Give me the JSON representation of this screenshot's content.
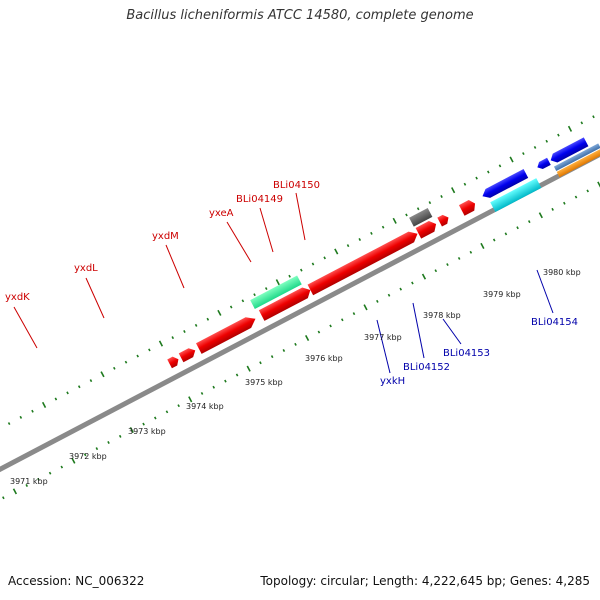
{
  "title": "Bacillus licheniformis ATCC 14580, complete genome",
  "footer": {
    "accession": "Accession: NC_006322",
    "summary": "Topology: circular; Length: 4,222,645 bp; Genes: 4,285"
  },
  "colors": {
    "backbone": "#8a8a8a",
    "tick": "#1e7a1e",
    "label_forward": "#cc0000",
    "label_reverse": "#0000aa"
  },
  "kbp_labels": [
    "3971 kbp",
    "3972 kbp",
    "3973 kbp",
    "3974 kbp",
    "3975 kbp",
    "3976 kbp",
    "3977 kbp",
    "3978 kbp",
    "3979 kbp",
    "3980 kbp"
  ],
  "gene_labels": [
    {
      "text": "yxdK",
      "color": "#cc0000"
    },
    {
      "text": "yxdL",
      "color": "#cc0000"
    },
    {
      "text": "yxdM",
      "color": "#cc0000"
    },
    {
      "text": "yxeA",
      "color": "#cc0000"
    },
    {
      "text": "BLi04149",
      "color": "#cc0000"
    },
    {
      "text": "BLi04150",
      "color": "#cc0000"
    },
    {
      "text": "yxkH",
      "color": "#0000aa"
    },
    {
      "text": "BLi04152",
      "color": "#0000aa"
    },
    {
      "text": "BLi04153",
      "color": "#0000aa"
    },
    {
      "text": "BLi04154",
      "color": "#0000aa"
    }
  ]
}
